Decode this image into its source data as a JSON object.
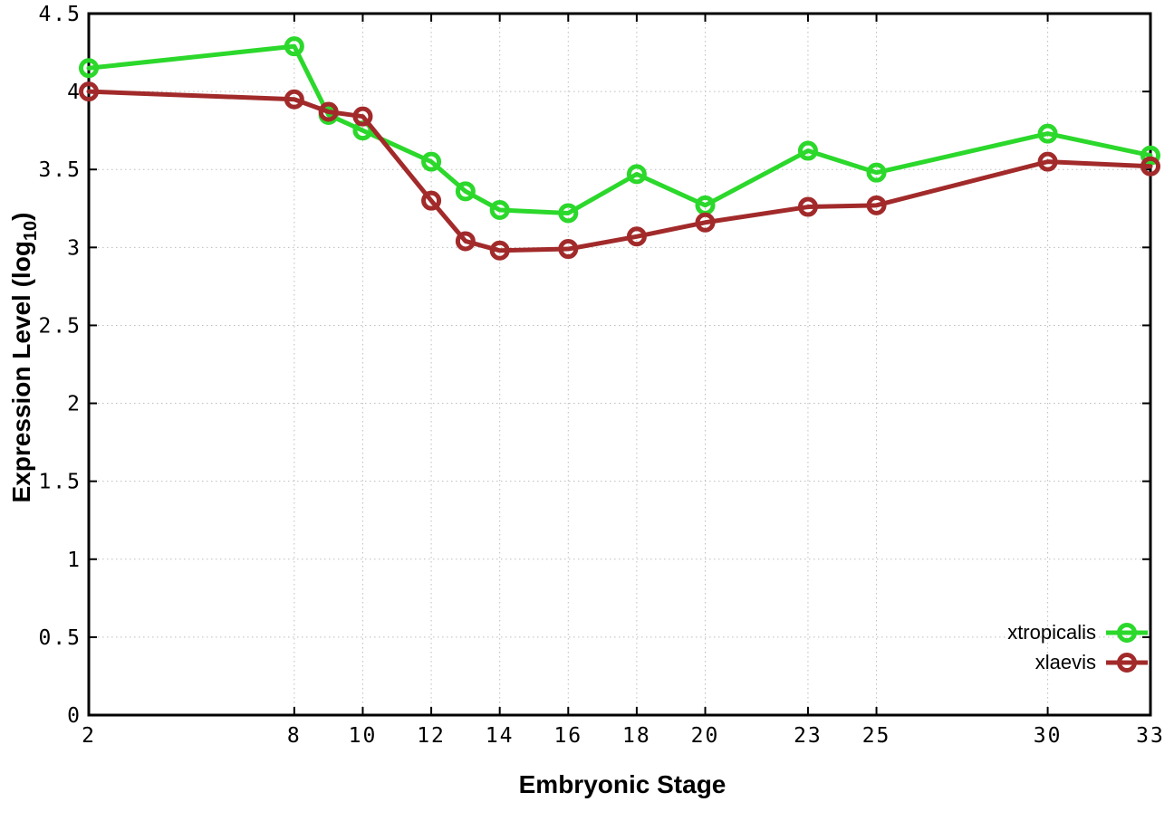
{
  "chart_data": {
    "type": "line",
    "title": "",
    "xlabel": "Embryonic Stage",
    "ylabel": "Expression Level (log10)",
    "ylabel_parts": {
      "pre": "Expression Level (log",
      "sub": "10",
      "post": ")"
    },
    "x": [
      2,
      8,
      9,
      10,
      12,
      13,
      14,
      16,
      18,
      20,
      23,
      25,
      30,
      33
    ],
    "series": [
      {
        "name": "xtropicalis",
        "color": "#2bd82b",
        "values": [
          4.15,
          4.29,
          3.85,
          3.75,
          3.55,
          3.36,
          3.24,
          3.22,
          3.47,
          3.27,
          3.62,
          3.48,
          3.73,
          3.59
        ]
      },
      {
        "name": "xlaevis",
        "color": "#a22a2a",
        "values": [
          4.0,
          3.95,
          3.87,
          3.84,
          3.3,
          3.04,
          2.98,
          2.99,
          3.07,
          3.16,
          3.26,
          3.27,
          3.55,
          3.52
        ]
      }
    ],
    "x_ticks": [
      2,
      8,
      10,
      12,
      14,
      16,
      18,
      20,
      23,
      25,
      30,
      33
    ],
    "x_tick_labels": [
      "2",
      "8",
      "10",
      "12",
      "14",
      "16",
      "18",
      "20",
      "23",
      "25",
      "30",
      "33"
    ],
    "y_ticks": [
      0,
      0.5,
      1,
      1.5,
      2,
      2.5,
      3,
      3.5,
      4,
      4.5
    ],
    "y_tick_labels": [
      "0",
      "0.5",
      "1",
      "1.5",
      "2",
      "2.5",
      "3",
      "3.5",
      "4",
      "4.5"
    ],
    "xlim": [
      2,
      33
    ],
    "ylim": [
      0,
      4.5
    ],
    "grid": true,
    "grid_style": "dotted",
    "marker": "open-circle",
    "legend_position": "bottom-right",
    "colors": {
      "background": "#ffffff",
      "axis": "#000000",
      "grid": "#bdbdbd",
      "text": "#000000"
    }
  }
}
